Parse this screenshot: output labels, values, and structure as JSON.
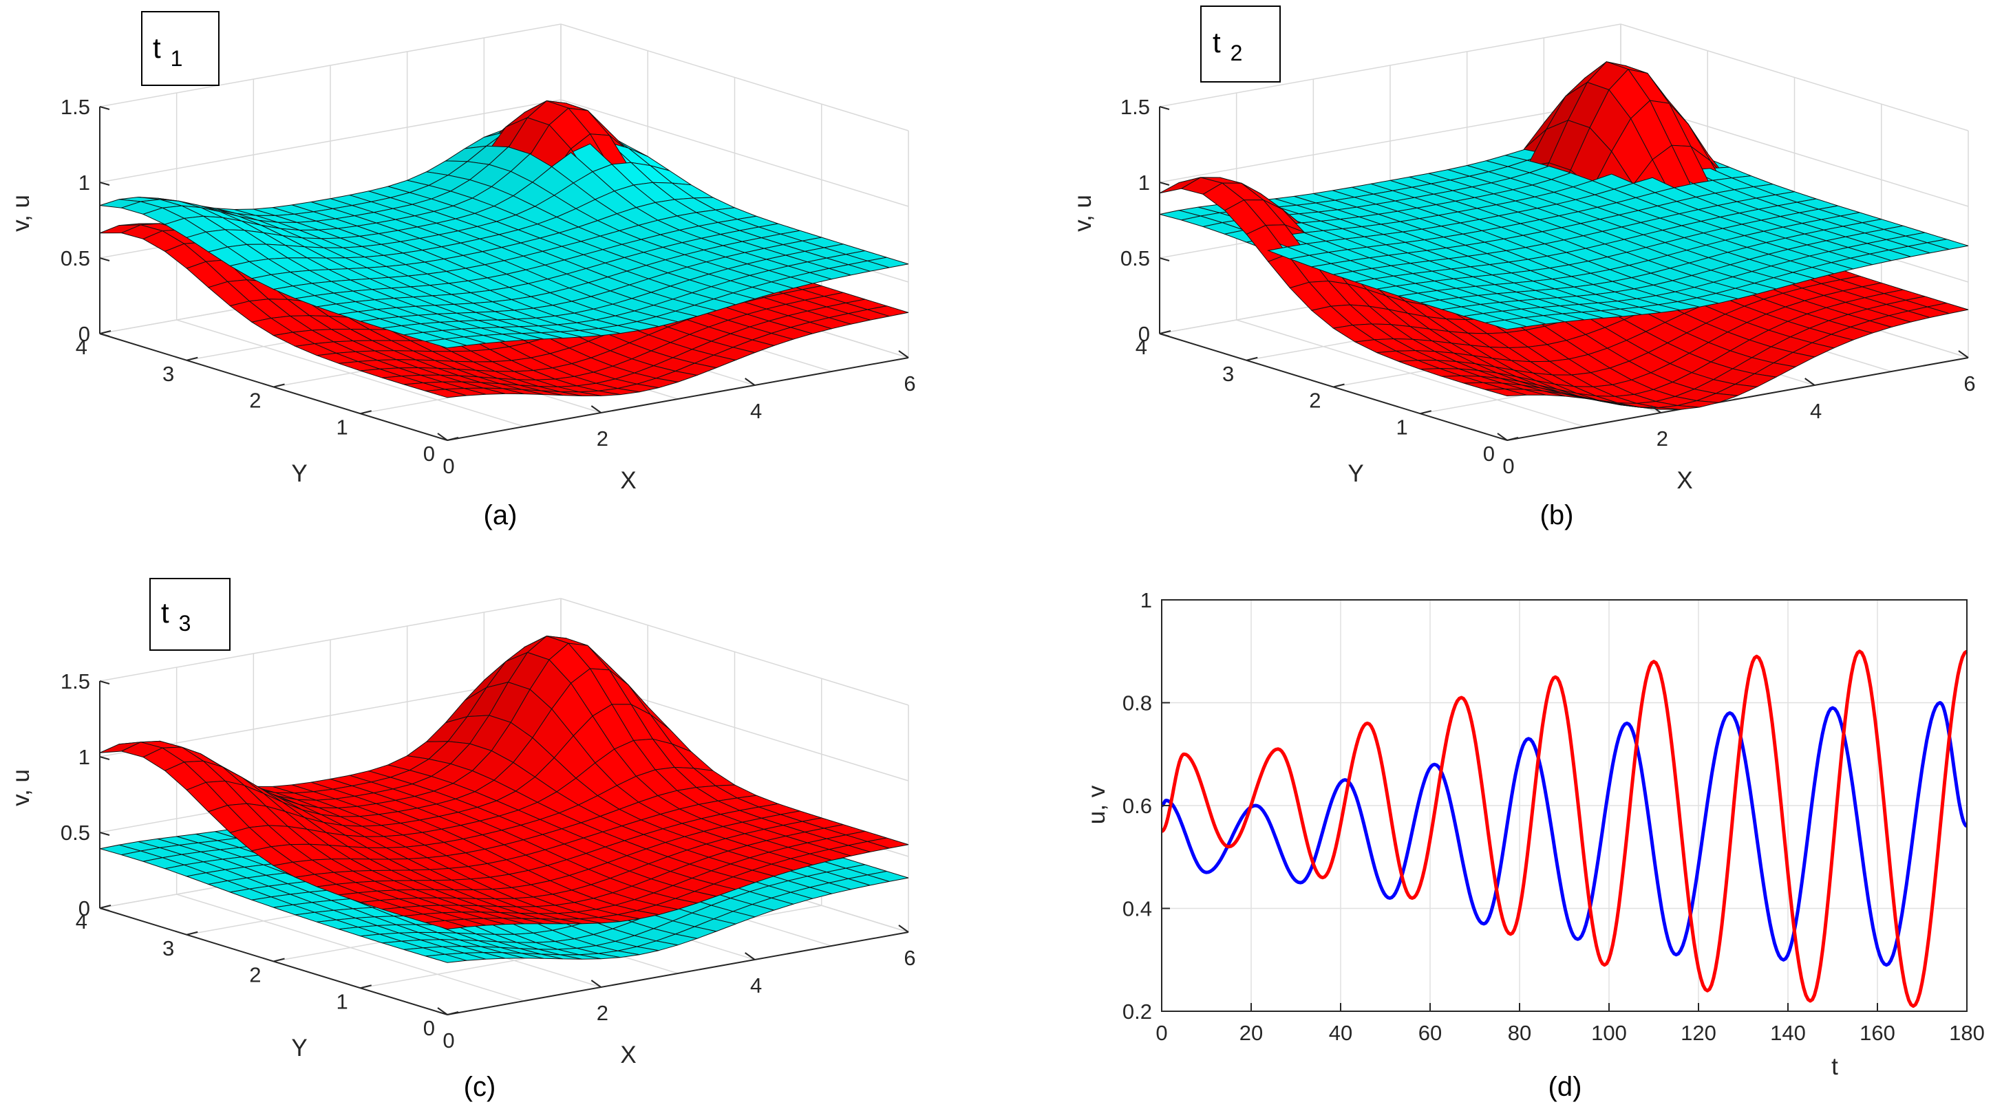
{
  "chart_data": [
    {
      "type": "surface",
      "panel_label": "(a)",
      "annotation": {
        "main": "t",
        "sub": "1"
      },
      "xlabel": "X",
      "ylabel": "Y",
      "zlabel": "v, u",
      "xticks": [
        "0",
        "2",
        "4",
        "6"
      ],
      "yticks": [
        "0",
        "1",
        "2",
        "3",
        "4"
      ],
      "zticks": [
        "0",
        "0.5",
        "1",
        "1.5"
      ],
      "xlim": [
        0,
        6
      ],
      "ylim": [
        0,
        4
      ],
      "zlim": [
        0,
        1.5
      ],
      "series": [
        {
          "name": "v",
          "color": "#00e5e5",
          "base": 0.62,
          "peak_left": 0.28,
          "peak_right": 0.38,
          "dip": 0.14
        },
        {
          "name": "u",
          "color": "#ff0000",
          "base": 0.3,
          "peak_left": 0.45,
          "peak_right": 0.82,
          "dip": 0.24
        }
      ]
    },
    {
      "type": "surface",
      "panel_label": "(b)",
      "annotation": {
        "main": "t",
        "sub": "2"
      },
      "xlabel": "X",
      "ylabel": "Y",
      "zlabel": "v, u",
      "xticks": [
        "0",
        "2",
        "4",
        "6"
      ],
      "yticks": [
        "0",
        "1",
        "2",
        "3",
        "4"
      ],
      "zticks": [
        "0",
        "0.5",
        "1",
        "1.5"
      ],
      "xlim": [
        0,
        6
      ],
      "ylim": [
        0,
        4
      ],
      "zlim": [
        0,
        1.5
      ],
      "series": [
        {
          "name": "v",
          "color": "#00e5e5",
          "base": 0.74,
          "peak_left": 0.06,
          "peak_right": 0.1,
          "dip": 0.1
        },
        {
          "name": "u",
          "color": "#ff0000",
          "base": 0.32,
          "peak_left": 0.75,
          "peak_right": 1.05,
          "dip": 0.38
        }
      ]
    },
    {
      "type": "surface",
      "panel_label": "(c)",
      "annotation": {
        "main": "t",
        "sub": "3"
      },
      "xlabel": "X",
      "ylabel": "Y",
      "zlabel": "v, u",
      "xticks": [
        "0",
        "2",
        "4",
        "6"
      ],
      "yticks": [
        "0",
        "1",
        "2",
        "3",
        "4"
      ],
      "zticks": [
        "0",
        "0.5",
        "1",
        "1.5"
      ],
      "xlim": [
        0,
        6
      ],
      "ylim": [
        0,
        4
      ],
      "zlim": [
        0,
        1.5
      ],
      "series": [
        {
          "name": "v",
          "color": "#00e5e5",
          "base": 0.36,
          "peak_left": 0.04,
          "peak_right": 0.1,
          "dip": 0.22
        },
        {
          "name": "u",
          "color": "#ff0000",
          "base": 0.58,
          "peak_left": 0.55,
          "peak_right": 0.8,
          "dip": 0.2
        }
      ]
    },
    {
      "type": "line",
      "panel_label": "(d)",
      "xlabel": "t",
      "ylabel": "u, v",
      "xlim": [
        0,
        180
      ],
      "ylim": [
        0.2,
        1
      ],
      "xticks": [
        "0",
        "20",
        "40",
        "60",
        "80",
        "100",
        "120",
        "140",
        "160",
        "180"
      ],
      "yticks": [
        "0.2",
        "0.4",
        "0.6",
        "0.8",
        "1"
      ],
      "grid": true,
      "series": [
        {
          "name": "blue",
          "color": "#0000ff",
          "x": [
            0,
            1,
            10,
            21,
            31,
            41,
            51,
            61,
            72,
            82,
            93,
            104,
            115,
            127,
            139,
            150,
            162,
            174,
            180
          ],
          "y": [
            0.6,
            0.61,
            0.47,
            0.6,
            0.45,
            0.65,
            0.42,
            0.68,
            0.37,
            0.73,
            0.34,
            0.76,
            0.31,
            0.78,
            0.3,
            0.79,
            0.29,
            0.8,
            0.56
          ]
        },
        {
          "name": "red",
          "color": "#ff0000",
          "x": [
            0,
            5,
            15,
            26,
            36,
            46,
            56,
            67,
            78,
            88,
            99,
            110,
            122,
            133,
            145,
            156,
            168,
            180
          ],
          "y": [
            0.55,
            0.7,
            0.52,
            0.71,
            0.46,
            0.76,
            0.42,
            0.81,
            0.35,
            0.85,
            0.29,
            0.88,
            0.24,
            0.89,
            0.22,
            0.9,
            0.21,
            0.9
          ]
        }
      ]
    }
  ]
}
